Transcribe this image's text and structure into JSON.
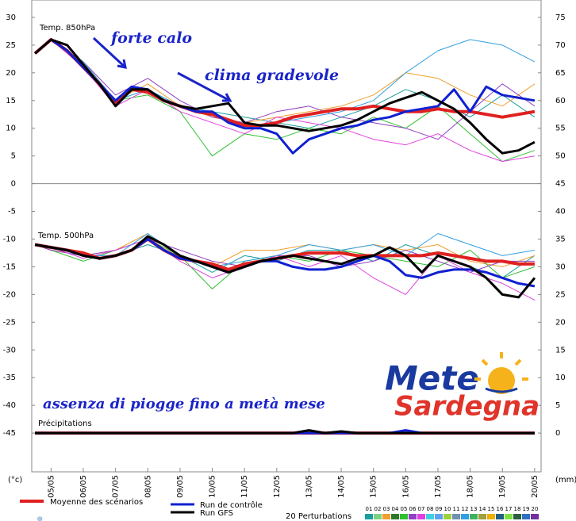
{
  "chart_data": {
    "type": "line",
    "panel_labels": [
      "Temp. 850hPa",
      "Temp. 500hPa",
      "Précipitations"
    ],
    "annotations": [
      "forte calo",
      "clima gradevole",
      "assenza di piogge fino a metà mese"
    ],
    "watermark": {
      "top": "Mete",
      "bottom": "Sardegna"
    },
    "ylabel": "(°c)",
    "y2label": "(mm)",
    "xlim": [
      4.4,
      20.2
    ],
    "xticks": [
      {
        "value": 5,
        "label": "05/05"
      },
      {
        "value": 6,
        "label": "06/05"
      },
      {
        "value": 7,
        "label": "07/05"
      },
      {
        "value": 8,
        "label": "08/05"
      },
      {
        "value": 9,
        "label": "09/05"
      },
      {
        "value": 10,
        "label": "10/05"
      },
      {
        "value": 11,
        "label": "11/05"
      },
      {
        "value": 12,
        "label": "12/05"
      },
      {
        "value": 13,
        "label": "13/05"
      },
      {
        "value": 14,
        "label": "14/05"
      },
      {
        "value": 15,
        "label": "15/05"
      },
      {
        "value": 16,
        "label": "16/05"
      },
      {
        "value": 17,
        "label": "17/05"
      },
      {
        "value": 18,
        "label": "18/05"
      },
      {
        "value": 19,
        "label": "19/05"
      },
      {
        "value": 20,
        "label": "20/05"
      }
    ],
    "ylim": [
      -52,
      33.14
    ],
    "yticks": [
      30,
      25,
      20,
      15,
      10,
      5,
      0,
      -5,
      -10,
      -15,
      -20,
      -25,
      -30,
      -35,
      -40,
      -45
    ],
    "y2lim": [
      -7,
      78.14
    ],
    "y2ticks": [
      75,
      70,
      65,
      60,
      55,
      50,
      45,
      40,
      35,
      30,
      25,
      20,
      15,
      10,
      5,
      0
    ],
    "x": [
      4.5,
      5,
      5.5,
      6,
      6.5,
      7,
      7.5,
      8,
      8.5,
      9,
      9.5,
      10,
      10.5,
      11,
      11.5,
      12,
      12.5,
      13,
      13.5,
      14,
      14.5,
      15,
      15.5,
      16,
      16.5,
      17,
      17.5,
      18,
      18.5,
      19,
      19.5,
      20
    ],
    "series": [
      {
        "name": "Moyenne des scénarios",
        "color": "#e02020",
        "width": 4,
        "t850": [
          23.5,
          26,
          24,
          21,
          18,
          14.5,
          17,
          16.5,
          15,
          14,
          13,
          12.5,
          11.5,
          10.5,
          10.5,
          11,
          12,
          12.5,
          13,
          13.5,
          13.5,
          14,
          13.5,
          13,
          13,
          13.5,
          13,
          13,
          12.5,
          12,
          12.5,
          13
        ],
        "t500": [
          -11,
          -11.5,
          -12,
          -12.5,
          -13.5,
          -13,
          -12,
          -10,
          -12,
          -13.5,
          -14,
          -14.5,
          -15.5,
          -14.5,
          -14,
          -13.5,
          -13,
          -12.5,
          -12.5,
          -12.5,
          -13,
          -13,
          -13,
          -13,
          -13,
          -12.5,
          -13,
          -13.5,
          -14,
          -14,
          -14.5,
          -14.5
        ],
        "precip": [
          0,
          0,
          0,
          0,
          0,
          0,
          0,
          0,
          0,
          0,
          0,
          0,
          0,
          0,
          0,
          0,
          0,
          0,
          0,
          0,
          0,
          0,
          0,
          0,
          0,
          0,
          0,
          0,
          0,
          0,
          0,
          0
        ]
      },
      {
        "name": "Run de contrôle",
        "color": "#1020d0",
        "width": 3,
        "t850": [
          23.5,
          26,
          24,
          21,
          18,
          15,
          17.5,
          17,
          15,
          14,
          13,
          13,
          11,
          10,
          10,
          9,
          5.5,
          8,
          9,
          10,
          10.5,
          11.5,
          12,
          13,
          13.5,
          14,
          17,
          13,
          17.5,
          16,
          15.5,
          15
        ],
        "t500": [
          -11,
          -11.5,
          -12,
          -13,
          -13.5,
          -13,
          -12,
          -10,
          -12,
          -13.5,
          -14,
          -15,
          -16,
          -15,
          -14,
          -14,
          -15,
          -15.5,
          -15.5,
          -15,
          -14,
          -13,
          -14,
          -16.5,
          -17,
          -16,
          -15.5,
          -15.5,
          -16,
          -17,
          -18,
          -18.5
        ],
        "precip": [
          0,
          0,
          0,
          0,
          0,
          0,
          0,
          0,
          0,
          0,
          0,
          0,
          0,
          0,
          0,
          0,
          0,
          0,
          0,
          0,
          0,
          0,
          0,
          0.5,
          0,
          0,
          0,
          0,
          0,
          0,
          0,
          0
        ]
      },
      {
        "name": "Run GFS",
        "color": "#000000",
        "width": 3,
        "t850": [
          23.5,
          26,
          25,
          21.5,
          18,
          14,
          17,
          17,
          15,
          14,
          13.5,
          14,
          14.5,
          11,
          10.5,
          10.5,
          10,
          9.5,
          10,
          10.5,
          11.5,
          13,
          14.5,
          15.5,
          16.5,
          15,
          13.5,
          11,
          8,
          5.5,
          6,
          7.5
        ],
        "t500": [
          -11,
          -11.5,
          -12,
          -13,
          -13.5,
          -13,
          -12,
          -9.5,
          -11,
          -13,
          -14,
          -15,
          -16,
          -15,
          -14,
          -13.5,
          -13,
          -13.5,
          -14,
          -14.5,
          -13.5,
          -13,
          -11.5,
          -13,
          -16,
          -13,
          -14,
          -15,
          -17,
          -20,
          -20.5,
          -17
        ],
        "precip": [
          0,
          0,
          0,
          0,
          0,
          0,
          0,
          0,
          0,
          0,
          0,
          0,
          0,
          0,
          0,
          0,
          0,
          0.5,
          0,
          0.3,
          0,
          0,
          0,
          0,
          0,
          0,
          0,
          0,
          0,
          0,
          0,
          0
        ]
      }
    ],
    "perturbations": {
      "label": "20 Perturbations",
      "x": [
        4.5,
        5,
        6,
        7,
        8,
        9,
        10,
        11,
        12,
        13,
        14,
        15,
        16,
        17,
        18,
        19,
        20
      ],
      "members": [
        {
          "name": "01",
          "color": "#1a9e9e",
          "t850": [
            23.5,
            26,
            21,
            15,
            17,
            14,
            13,
            12,
            11,
            10,
            12,
            14,
            17,
            15,
            12,
            16,
            12
          ],
          "t500": [
            -11,
            -12,
            -13,
            -13,
            -11,
            -13,
            -16,
            -13,
            -14,
            -12,
            -12,
            -14,
            -11,
            -13,
            -15,
            -17,
            -13
          ]
        },
        {
          "name": "02",
          "color": "#80d080"
        },
        {
          "name": "03",
          "color": "#f0a030",
          "t850": [
            23.5,
            26,
            22,
            15,
            18,
            14,
            12,
            11,
            12,
            13,
            14,
            16,
            20,
            19,
            16,
            14,
            18
          ],
          "t500": [
            -11,
            -12,
            -13,
            -12,
            -9,
            -13,
            -15,
            -12,
            -12,
            -11,
            -12,
            -11,
            -12,
            -11,
            -14,
            -15,
            -13
          ]
        },
        {
          "name": "04",
          "color": "#2a7a2a"
        },
        {
          "name": "05",
          "color": "#30c030",
          "t850": [
            23.5,
            26,
            21,
            15,
            16,
            13,
            5,
            9,
            8,
            10,
            9,
            12,
            10,
            14,
            9,
            4,
            6
          ],
          "t500": [
            -11,
            -12,
            -14,
            -12,
            -10,
            -13,
            -19,
            -14,
            -13,
            -14,
            -12,
            -13,
            -14,
            -15,
            -12,
            -17,
            -15
          ]
        },
        {
          "name": "06",
          "color": "#9040c0",
          "t850": [
            23.5,
            26,
            22,
            16,
            19,
            15,
            12,
            11,
            13,
            14,
            12,
            11,
            10,
            8,
            13,
            18,
            14
          ],
          "t500": [
            -11,
            -12,
            -13,
            -12,
            -10,
            -12,
            -14,
            -15,
            -13,
            -13,
            -15,
            -14,
            -12,
            -14,
            -16,
            -14,
            -14
          ]
        },
        {
          "name": "07",
          "color": "#e040e0",
          "t850": [
            23.5,
            26,
            21,
            14,
            17,
            13,
            11,
            9,
            12,
            11,
            10,
            8,
            7,
            9,
            6,
            4,
            5
          ],
          "t500": [
            -11,
            -11.5,
            -13.5,
            -12,
            -10,
            -14,
            -17,
            -15,
            -13,
            -15,
            -13,
            -17,
            -20,
            -13,
            -16,
            -18,
            -21
          ]
        },
        {
          "name": "08",
          "color": "#40d0e0"
        },
        {
          "name": "09",
          "color": "#60a0f0"
        },
        {
          "name": "10",
          "color": "#a0d040"
        },
        {
          "name": "11",
          "color": "#7090b0"
        },
        {
          "name": "12",
          "color": "#30a0e0",
          "t850": [
            23.5,
            26,
            22,
            15,
            17,
            14,
            13,
            10,
            11,
            12,
            13,
            15,
            20,
            24,
            26,
            25,
            22
          ],
          "t500": [
            -11,
            -11.5,
            -13,
            -13,
            -9,
            -13,
            -15,
            -14,
            -13,
            -11,
            -12,
            -11,
            -13,
            -9,
            -11,
            -13,
            -12
          ]
        },
        {
          "name": "13",
          "color": "#40b060"
        },
        {
          "name": "14",
          "color": "#a0a040"
        },
        {
          "name": "15",
          "color": "#f0b000"
        },
        {
          "name": "16",
          "color": "#206080"
        },
        {
          "name": "17",
          "color": "#80e040"
        },
        {
          "name": "18",
          "color": "#2a6040"
        },
        {
          "name": "19",
          "color": "#3070c0"
        },
        {
          "name": "20",
          "color": "#7030a0"
        }
      ]
    }
  }
}
